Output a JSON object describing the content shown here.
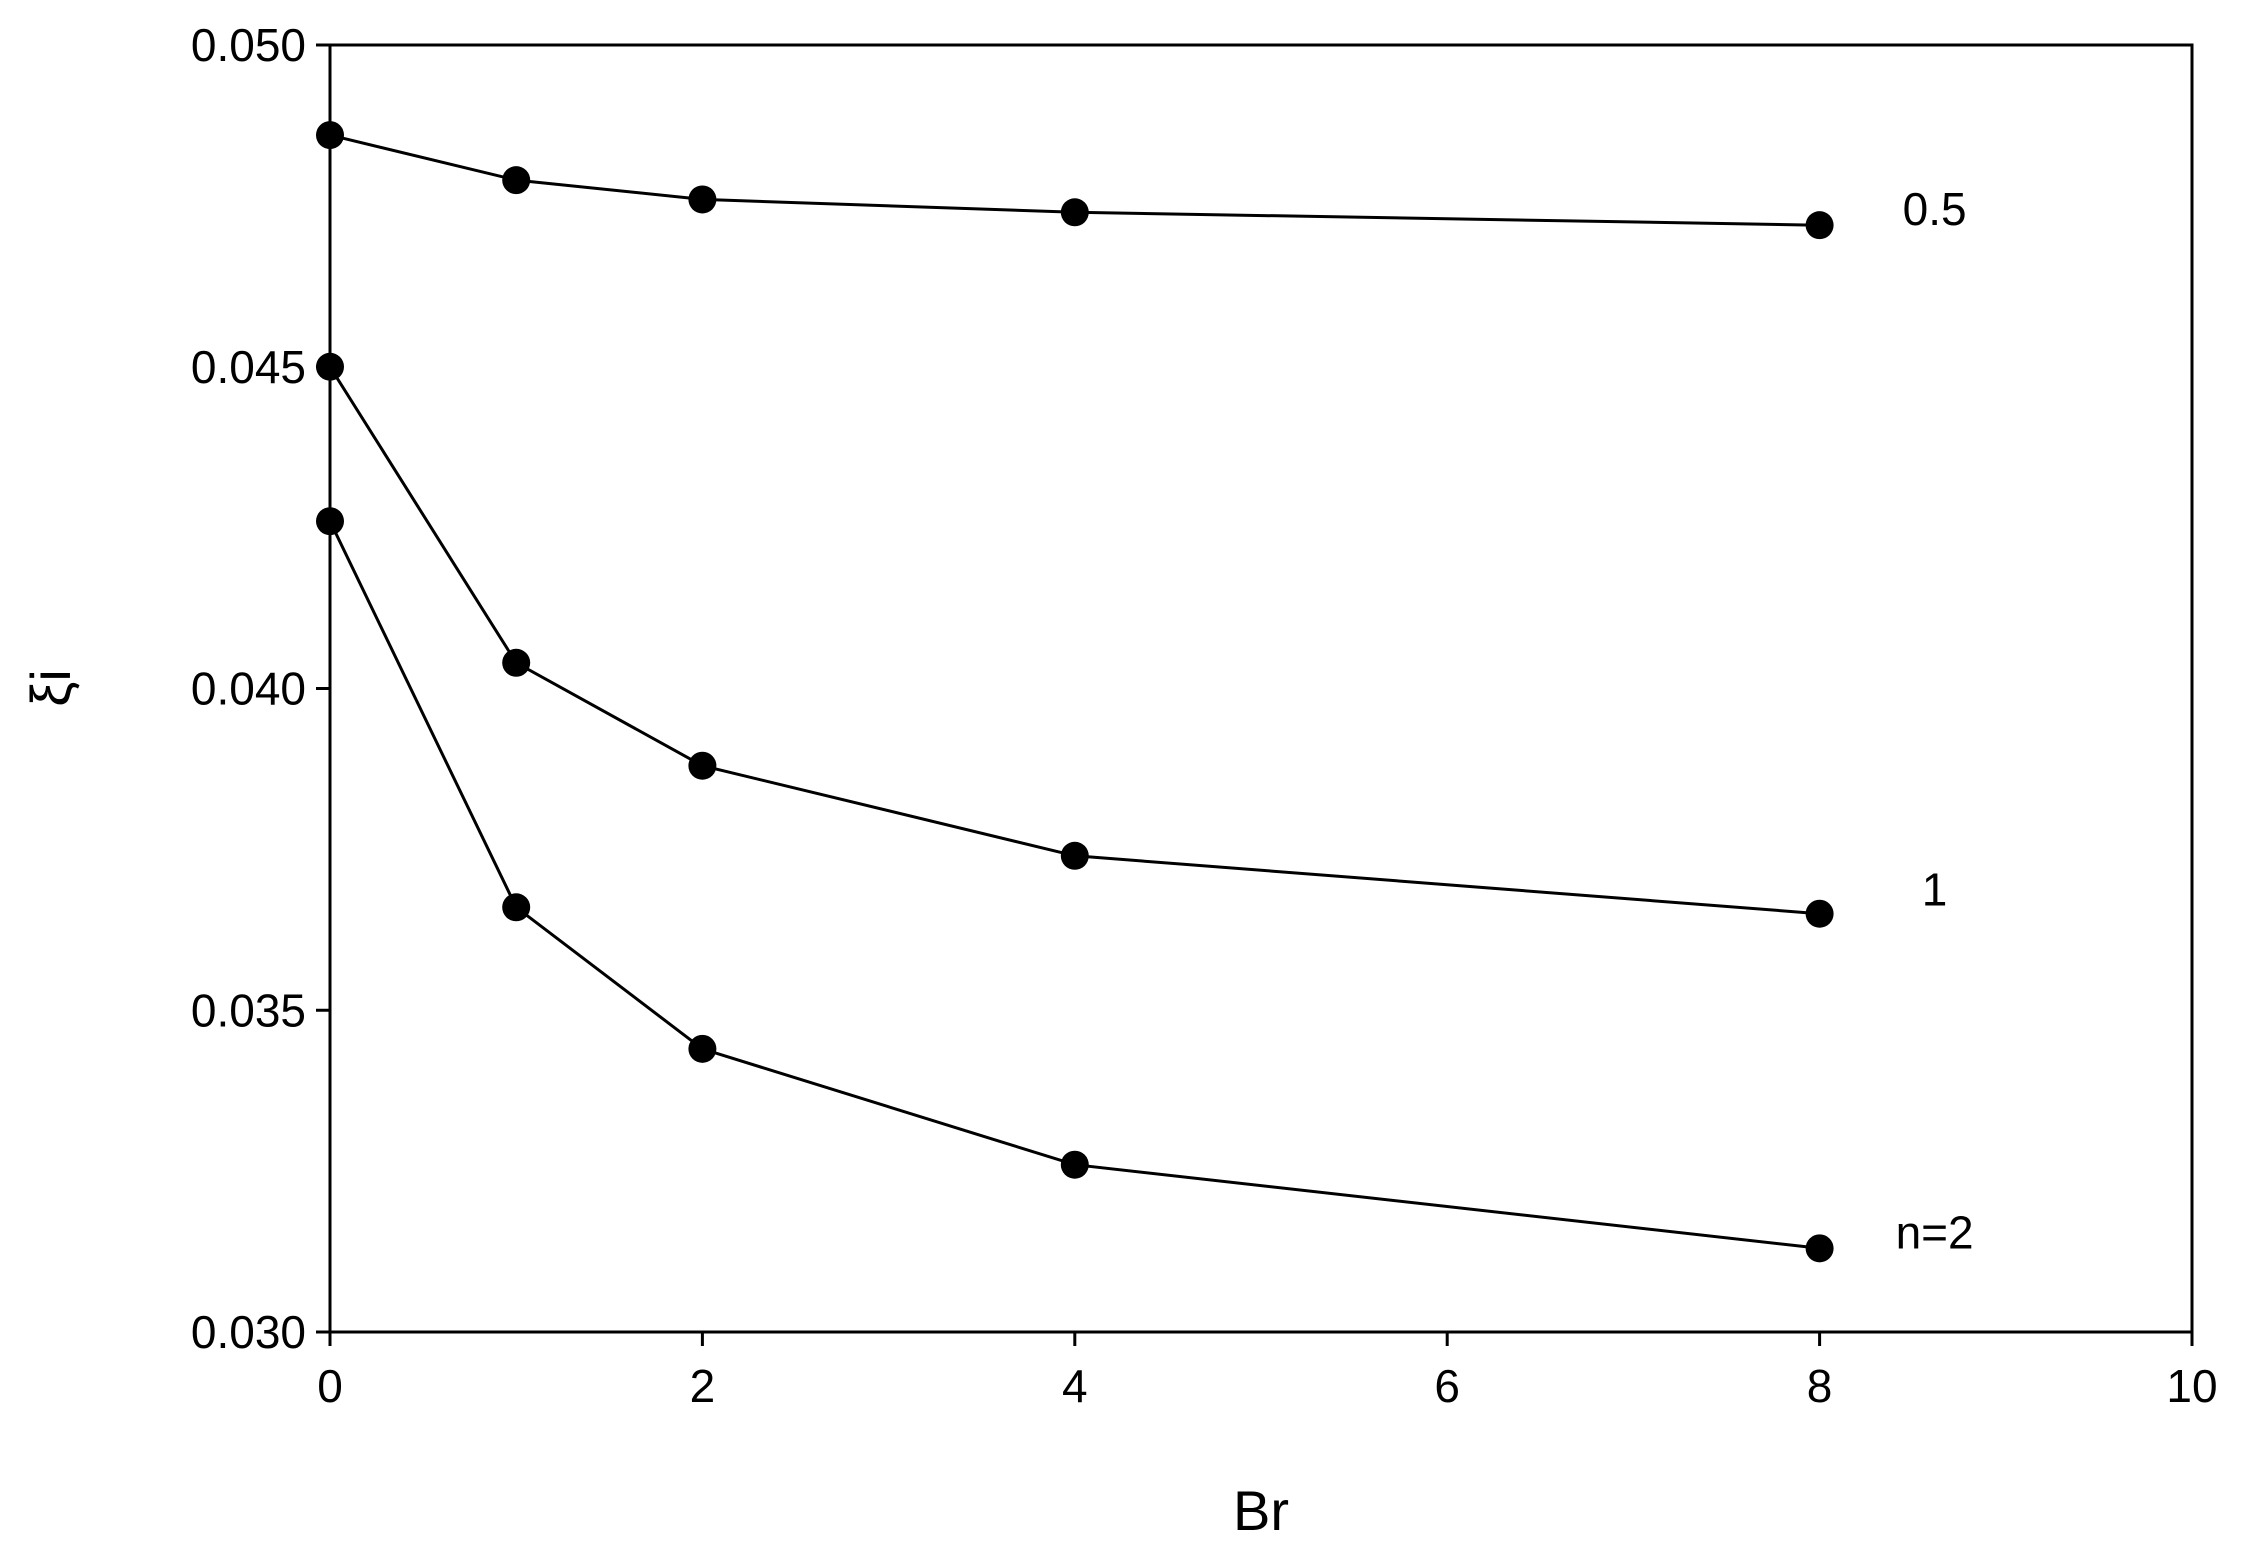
{
  "chart_data": {
    "type": "line",
    "title": "",
    "xlabel": "Br",
    "ylabel": "ξi",
    "xlim": [
      0,
      10
    ],
    "ylim": [
      0.03,
      0.05
    ],
    "x_ticks": [
      "0",
      "2",
      "4",
      "6",
      "8",
      "10"
    ],
    "y_ticks": [
      "0.030",
      "0.035",
      "0.040",
      "0.045",
      "0.050"
    ],
    "grid": false,
    "x": [
      0,
      1,
      2,
      4,
      8
    ],
    "series": [
      {
        "name": "0.5",
        "values": [
          0.0486,
          0.0479,
          0.0476,
          0.0474,
          0.0472
        ]
      },
      {
        "name": "1",
        "values": [
          0.045,
          0.0404,
          0.0388,
          0.0374,
          0.0365
        ]
      },
      {
        "name": "n=2",
        "values": [
          0.0426,
          0.0366,
          0.0344,
          0.0326,
          0.0313
        ]
      }
    ]
  }
}
